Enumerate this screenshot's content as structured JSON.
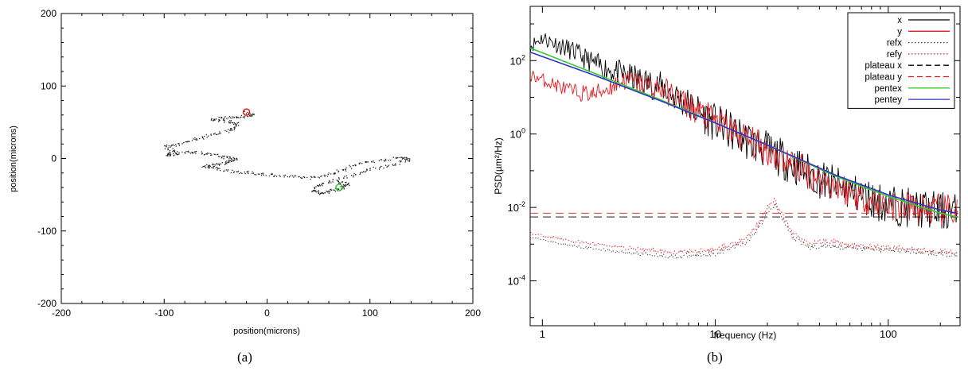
{
  "captions": {
    "a": "(a)",
    "b": "(b)"
  },
  "chart_data": [
    {
      "type": "scatter",
      "xlabel": "position(microns)",
      "ylabel": "position(microns)",
      "xlim": [
        -200,
        200
      ],
      "ylim": [
        -200,
        200
      ],
      "x_ticks": [
        -200,
        -100,
        0,
        100,
        200
      ],
      "y_ticks": [
        -200,
        -100,
        0,
        100,
        200
      ],
      "grid": false,
      "track_path": [
        [
          -20,
          64
        ],
        [
          -15,
          60
        ],
        [
          -28,
          58
        ],
        [
          -40,
          57
        ],
        [
          -55,
          54
        ],
        [
          -40,
          52
        ],
        [
          -30,
          48
        ],
        [
          -35,
          40
        ],
        [
          -52,
          34
        ],
        [
          -68,
          28
        ],
        [
          -85,
          20
        ],
        [
          -100,
          18
        ],
        [
          -90,
          10
        ],
        [
          -100,
          5
        ],
        [
          -85,
          8
        ],
        [
          -70,
          10
        ],
        [
          -55,
          6
        ],
        [
          -40,
          2
        ],
        [
          -30,
          0
        ],
        [
          -38,
          -4
        ],
        [
          -50,
          -8
        ],
        [
          -62,
          -10
        ],
        [
          -48,
          -14
        ],
        [
          -30,
          -18
        ],
        [
          -12,
          -20
        ],
        [
          5,
          -22
        ],
        [
          25,
          -25
        ],
        [
          42,
          -26
        ],
        [
          60,
          -22
        ],
        [
          75,
          -14
        ],
        [
          90,
          -6
        ],
        [
          110,
          -2
        ],
        [
          130,
          2
        ],
        [
          138,
          0
        ],
        [
          122,
          -8
        ],
        [
          100,
          -14
        ],
        [
          85,
          -22
        ],
        [
          65,
          -30
        ],
        [
          50,
          -36
        ],
        [
          45,
          -44
        ],
        [
          52,
          -48
        ],
        [
          62,
          -44
        ],
        [
          72,
          -40
        ],
        [
          78,
          -35
        ],
        [
          68,
          -30
        ]
      ],
      "markers": [
        {
          "name": "start",
          "x": -20,
          "y": 64,
          "color": "#e8171d"
        },
        {
          "name": "end",
          "x": 70,
          "y": -40,
          "color": "#2ecc2e"
        }
      ]
    },
    {
      "type": "line",
      "xlabel": "frequency (Hz)",
      "ylabel": "PSD(µm²/Hz)",
      "xscale": "log",
      "yscale": "log",
      "xlim": [
        0.85,
        260
      ],
      "ylim": [
        6e-06,
        3000
      ],
      "x_ticks": [
        1,
        10,
        100
      ],
      "y_ticks": [
        {
          "value": 100,
          "base": "10",
          "exp": "2"
        },
        {
          "value": 1,
          "base": "10",
          "exp": "0"
        },
        {
          "value": 0.01,
          "base": "10",
          "exp": "-2"
        },
        {
          "value": 0.0001,
          "base": "10",
          "exp": "-4"
        }
      ],
      "legend_position": "top-right",
      "series": [
        {
          "name": "x",
          "color": "#000000",
          "dash": "solid",
          "noise": 1.1,
          "points": [
            [
              0.85,
              250
            ],
            [
              1,
              420
            ],
            [
              1.5,
              180
            ],
            [
              2,
              80
            ],
            [
              3,
              40
            ],
            [
              5,
              18
            ],
            [
              8,
              4
            ],
            [
              10,
              2.0
            ],
            [
              20,
              0.35
            ],
            [
              40,
              0.06
            ],
            [
              70,
              0.02
            ],
            [
              100,
              0.012
            ],
            [
              150,
              0.009
            ],
            [
              250,
              0.007
            ]
          ]
        },
        {
          "name": "y",
          "color": "#e8171d",
          "dash": "solid",
          "noise": 0.9,
          "points": [
            [
              0.85,
              40
            ],
            [
              1,
              30
            ],
            [
              1.5,
              14
            ],
            [
              2,
              12
            ],
            [
              3,
              30
            ],
            [
              5,
              16
            ],
            [
              8,
              4
            ],
            [
              10,
              2.2
            ],
            [
              20,
              0.35
            ],
            [
              40,
              0.06
            ],
            [
              70,
              0.02
            ],
            [
              100,
              0.012
            ],
            [
              150,
              0.009
            ],
            [
              250,
              0.008
            ]
          ]
        },
        {
          "name": "refx",
          "color": "#444444",
          "dash": "dotted",
          "noise": 0.15,
          "points": [
            [
              0.85,
              0.0015
            ],
            [
              1.5,
              0.0009
            ],
            [
              3,
              0.0006
            ],
            [
              6,
              0.00045
            ],
            [
              10,
              0.00055
            ],
            [
              15,
              0.0011
            ],
            [
              18,
              0.003
            ],
            [
              20,
              0.008
            ],
            [
              22,
              0.012
            ],
            [
              25,
              0.004
            ],
            [
              28,
              0.0015
            ],
            [
              35,
              0.0008
            ],
            [
              45,
              0.0009
            ],
            [
              60,
              0.0008
            ],
            [
              100,
              0.0007
            ],
            [
              150,
              0.0006
            ],
            [
              250,
              0.0005
            ]
          ]
        },
        {
          "name": "refy",
          "color": "#e8171d",
          "dash": "dotted",
          "noise": 0.15,
          "points": [
            [
              0.85,
              0.002
            ],
            [
              1.5,
              0.0012
            ],
            [
              3,
              0.0008
            ],
            [
              6,
              0.0006
            ],
            [
              10,
              0.0007
            ],
            [
              15,
              0.0014
            ],
            [
              18,
              0.004
            ],
            [
              20,
              0.01
            ],
            [
              22,
              0.016
            ],
            [
              25,
              0.005
            ],
            [
              28,
              0.002
            ],
            [
              35,
              0.001
            ],
            [
              45,
              0.0013
            ],
            [
              60,
              0.0009
            ],
            [
              100,
              0.0008
            ],
            [
              150,
              0.0007
            ],
            [
              250,
              0.0006
            ]
          ]
        },
        {
          "name": "plateau x",
          "color": "#000000",
          "dash": "dashed",
          "noise": 0,
          "points": [
            [
              0.85,
              0.0055
            ],
            [
              260,
              0.0055
            ]
          ]
        },
        {
          "name": "plateau y",
          "color": "#e8171d",
          "dash": "dashed",
          "noise": 0,
          "points": [
            [
              0.85,
              0.007
            ],
            [
              260,
              0.007
            ]
          ]
        },
        {
          "name": "pentex",
          "color": "#33cc33",
          "dash": "solid",
          "noise": 0,
          "points": [
            [
              0.85,
              220
            ],
            [
              2,
              45
            ],
            [
              5,
              8
            ],
            [
              10,
              2.0
            ],
            [
              20,
              0.5
            ],
            [
              50,
              0.07
            ],
            [
              100,
              0.02
            ],
            [
              200,
              0.007
            ],
            [
              250,
              0.0055
            ]
          ]
        },
        {
          "name": "pentey",
          "color": "#3333cc",
          "dash": "solid",
          "noise": 0,
          "points": [
            [
              0.85,
              170
            ],
            [
              2,
              40
            ],
            [
              5,
              7.5
            ],
            [
              10,
              2.0
            ],
            [
              20,
              0.5
            ],
            [
              50,
              0.075
            ],
            [
              100,
              0.022
            ],
            [
              200,
              0.0085
            ],
            [
              250,
              0.007
            ]
          ]
        }
      ]
    }
  ]
}
